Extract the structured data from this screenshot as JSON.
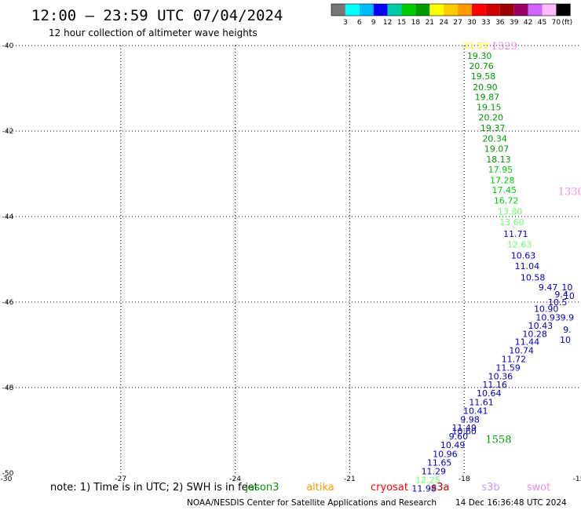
{
  "header": {
    "title": "12:00 – 23:59 UTC 07/04/2024",
    "subtitle": "12 hour collection of altimeter wave heights"
  },
  "colorbar": {
    "colors": [
      "#777777",
      "#00ffff",
      "#00bbff",
      "#0000ff",
      "#00ccaa",
      "#00cc00",
      "#009900",
      "#ffff00",
      "#ffcc00",
      "#ff9900",
      "#ff0000",
      "#cc0000",
      "#990000",
      "#990066",
      "#cc66ff",
      "#ffbbff",
      "#000000"
    ],
    "labels": [
      "3",
      "6",
      "9",
      "12",
      "15",
      "18",
      "21",
      "24",
      "27",
      "30",
      "33",
      "36",
      "39",
      "42",
      "45",
      "70",
      "(ft)"
    ]
  },
  "map": {
    "lon_range": [
      -30,
      -15
    ],
    "lat_range": [
      -50,
      -40
    ],
    "lon_ticks": [
      {
        "value": -30,
        "label": "-30"
      },
      {
        "value": -27,
        "label": "-27"
      },
      {
        "value": -24,
        "label": "-24"
      },
      {
        "value": -21,
        "label": "-21"
      },
      {
        "value": -18,
        "label": "-18"
      },
      {
        "value": -15,
        "label": "-15"
      }
    ],
    "lat_ticks": [
      {
        "value": -40,
        "label": "-40"
      },
      {
        "value": -42,
        "label": "-42"
      },
      {
        "value": -44,
        "label": "-44"
      },
      {
        "value": -46,
        "label": "-46"
      },
      {
        "value": -48,
        "label": "-48"
      },
      {
        "value": -50,
        "label": "-50"
      }
    ],
    "grid": "dotted"
  },
  "pass_times": [
    {
      "label": "1329",
      "lon": -16.95,
      "lat": -40.0,
      "color": "#ff88dd"
    },
    {
      "label": "1330",
      "lon": -15.2,
      "lat": -43.4,
      "color": "#ff88dd"
    },
    {
      "label": "1558",
      "lon": -17.1,
      "lat": -49.2,
      "color": "#009900"
    }
  ],
  "observations": [
    {
      "lon": -17.7,
      "lat": -40.0,
      "value": "21.53",
      "color": "#ffff00"
    },
    {
      "lon": -17.6,
      "lat": -40.24,
      "value": "19.30",
      "color": "#009900"
    },
    {
      "lon": -17.55,
      "lat": -40.48,
      "value": "20.76",
      "color": "#009900"
    },
    {
      "lon": -17.5,
      "lat": -40.72,
      "value": "19.58",
      "color": "#009900"
    },
    {
      "lon": -17.45,
      "lat": -40.97,
      "value": "20.90",
      "color": "#009900"
    },
    {
      "lon": -17.4,
      "lat": -41.2,
      "value": "19.87",
      "color": "#009900"
    },
    {
      "lon": -17.35,
      "lat": -41.44,
      "value": "19.15",
      "color": "#009900"
    },
    {
      "lon": -17.3,
      "lat": -41.68,
      "value": "20.20",
      "color": "#009900"
    },
    {
      "lon": -17.25,
      "lat": -41.93,
      "value": "19.37",
      "color": "#009900"
    },
    {
      "lon": -17.2,
      "lat": -42.17,
      "value": "20.34",
      "color": "#009900"
    },
    {
      "lon": -17.15,
      "lat": -42.41,
      "value": "19.07",
      "color": "#009900"
    },
    {
      "lon": -17.1,
      "lat": -42.66,
      "value": "18.13",
      "color": "#009900"
    },
    {
      "lon": -17.05,
      "lat": -42.9,
      "value": "17.95",
      "color": "#00cc00"
    },
    {
      "lon": -17.0,
      "lat": -43.15,
      "value": "17.28",
      "color": "#00cc00"
    },
    {
      "lon": -16.95,
      "lat": -43.38,
      "value": "17.45",
      "color": "#00cc00"
    },
    {
      "lon": -16.9,
      "lat": -43.62,
      "value": "16.72",
      "color": "#00cc00"
    },
    {
      "lon": -16.8,
      "lat": -43.88,
      "value": "13.80",
      "color": "#66ff66"
    },
    {
      "lon": -16.75,
      "lat": -44.13,
      "value": "13.60",
      "color": "#66ff66"
    },
    {
      "lon": -16.65,
      "lat": -44.4,
      "value": "11.71",
      "color": "#0000cc"
    },
    {
      "lon": -16.55,
      "lat": -44.65,
      "value": "12.63",
      "color": "#66ff66"
    },
    {
      "lon": -16.45,
      "lat": -44.91,
      "value": "10.63",
      "color": "#0000cc"
    },
    {
      "lon": -16.35,
      "lat": -45.16,
      "value": "11.04",
      "color": "#0000cc"
    },
    {
      "lon": -16.2,
      "lat": -45.42,
      "value": "10.58",
      "color": "#0000cc"
    },
    {
      "lon": -15.8,
      "lat": -45.65,
      "value": "9.47",
      "color": "#0000cc"
    },
    {
      "lon": -15.3,
      "lat": -45.65,
      "value": "10",
      "color": "#0000cc"
    },
    {
      "lon": -15.45,
      "lat": -45.82,
      "value": "9.4",
      "color": "#0000cc"
    },
    {
      "lon": -15.25,
      "lat": -45.85,
      "value": "10",
      "color": "#0000cc"
    },
    {
      "lon": -15.55,
      "lat": -46.0,
      "value": "10.5",
      "color": "#0000cc"
    },
    {
      "lon": -15.85,
      "lat": -46.16,
      "value": "10.90",
      "color": "#0000cc"
    },
    {
      "lon": -15.8,
      "lat": -46.36,
      "value": "10.93",
      "color": "#0000cc"
    },
    {
      "lon": -15.3,
      "lat": -46.36,
      "value": "9.9",
      "color": "#0000cc"
    },
    {
      "lon": -16.0,
      "lat": -46.55,
      "value": "10.43",
      "color": "#0000cc"
    },
    {
      "lon": -15.3,
      "lat": -46.64,
      "value": "9.",
      "color": "#0000cc"
    },
    {
      "lon": -16.15,
      "lat": -46.74,
      "value": "10.28",
      "color": "#0000cc"
    },
    {
      "lon": -16.35,
      "lat": -46.93,
      "value": "11.44",
      "color": "#0000cc"
    },
    {
      "lon": -15.35,
      "lat": -46.88,
      "value": "10",
      "color": "#0000cc"
    },
    {
      "lon": -16.5,
      "lat": -47.13,
      "value": "10.74",
      "color": "#0000cc"
    },
    {
      "lon": -16.7,
      "lat": -47.33,
      "value": "11.72",
      "color": "#0000cc"
    },
    {
      "lon": -16.85,
      "lat": -47.53,
      "value": "11.59",
      "color": "#0000cc"
    },
    {
      "lon": -17.05,
      "lat": -47.73,
      "value": "10.36",
      "color": "#0000cc"
    },
    {
      "lon": -17.2,
      "lat": -47.93,
      "value": "11.16",
      "color": "#0000cc"
    },
    {
      "lon": -17.35,
      "lat": -48.13,
      "value": "10.64",
      "color": "#0000cc"
    },
    {
      "lon": -17.55,
      "lat": -48.34,
      "value": "11.61",
      "color": "#0000cc"
    },
    {
      "lon": -17.7,
      "lat": -48.54,
      "value": "10.41",
      "color": "#0000cc"
    },
    {
      "lon": -17.85,
      "lat": -48.74,
      "value": "9.98",
      "color": "#0000cc"
    },
    {
      "lon": -18.0,
      "lat": -48.94,
      "value": "11.49",
      "color": "#0000cc"
    },
    {
      "lon": -18.0,
      "lat": -49.02,
      "value": "10.60",
      "color": "#0000cc"
    },
    {
      "lon": -18.15,
      "lat": -49.14,
      "value": "9.60",
      "color": "#0000cc"
    },
    {
      "lon": -18.3,
      "lat": -49.34,
      "value": "10.49",
      "color": "#0000cc"
    },
    {
      "lon": -18.5,
      "lat": -49.55,
      "value": "10.96",
      "color": "#0000cc"
    },
    {
      "lon": -18.65,
      "lat": -49.75,
      "value": "11.65",
      "color": "#0000cc"
    },
    {
      "lon": -18.8,
      "lat": -49.95,
      "value": "11.29",
      "color": "#0000cc"
    },
    {
      "lon": -18.95,
      "lat": -50.16,
      "value": "12.25",
      "color": "#66ff66"
    },
    {
      "lon": -19.05,
      "lat": -50.36,
      "value": "11.98",
      "color": "#0000cc"
    }
  ],
  "footer": {
    "note": "note: 1) Time is in UTC; 2) SWH is in feet",
    "satellites": [
      {
        "name": "jason3",
        "color": "#009900"
      },
      {
        "name": "altika",
        "color": "#ff9900"
      },
      {
        "name": "cryosat",
        "color": "#ff0000"
      },
      {
        "name": "s3a",
        "color": "#cc0000"
      },
      {
        "name": "s3b",
        "color": "#cc99ff"
      },
      {
        "name": "swot",
        "color": "#ff88dd"
      }
    ],
    "credit": "NOAA/NESDIS Center for Satellite Applications and Research",
    "timestamp": "14 Dec 16:36:48 UTC 2024"
  }
}
